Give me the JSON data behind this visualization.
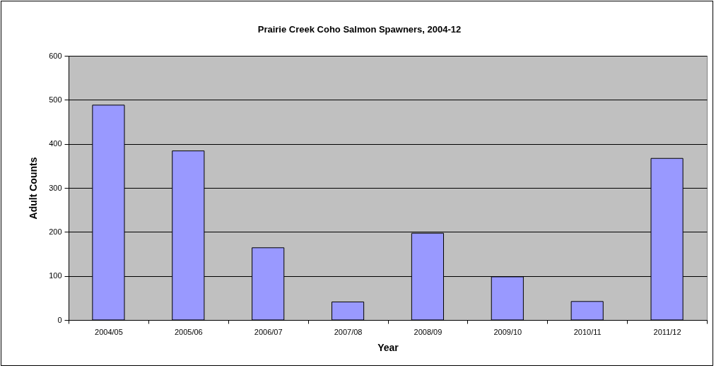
{
  "chart_data": {
    "type": "bar",
    "title": "Prairie Creek Coho Salmon Spawners, 2004-12",
    "xlabel": "Year",
    "ylabel": "Adult Counts",
    "categories": [
      "2004/05",
      "2005/06",
      "2006/07",
      "2007/08",
      "2008/09",
      "2009/10",
      "2010/11",
      "2011/12"
    ],
    "values": [
      488,
      384,
      164,
      41,
      197,
      98,
      42,
      367
    ],
    "color": "#9999ff",
    "ylim": [
      0,
      600
    ],
    "yticks": [
      0,
      100,
      200,
      300,
      400,
      500,
      600
    ],
    "grid": "y"
  }
}
